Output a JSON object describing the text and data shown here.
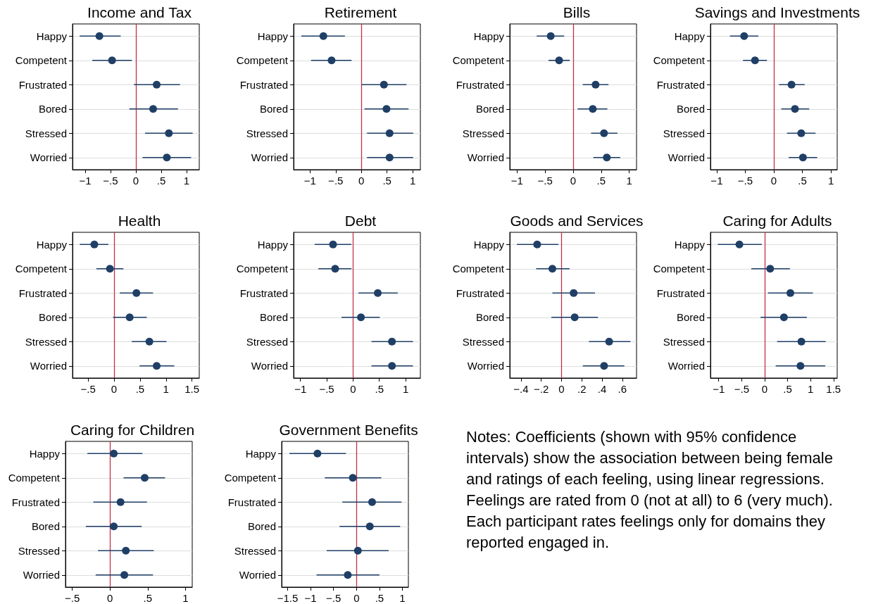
{
  "chart_data": [
    {
      "type": "scatter",
      "orientation": "horizontal",
      "title": "Income and Tax",
      "categories": [
        "Happy",
        "Competent",
        "Frustrated",
        "Bored",
        "Stressed",
        "Worried"
      ],
      "values": [
        -0.72,
        -0.47,
        0.41,
        0.34,
        0.65,
        0.61
      ],
      "errors": [
        [
          -1.11,
          -0.3
        ],
        [
          -0.86,
          -0.08
        ],
        [
          -0.04,
          0.87
        ],
        [
          -0.13,
          0.83
        ],
        [
          0.18,
          1.12
        ],
        [
          0.13,
          1.09
        ]
      ],
      "color": "#1f3f66",
      "marker": "circle",
      "xlim": [
        -1.25,
        1.25
      ],
      "xticks": [
        {
          "value": -1,
          "label": "−1"
        },
        {
          "value": -0.5,
          "label": "−.5"
        },
        0,
        {
          "value": 0.5,
          "label": ".5"
        },
        1
      ],
      "ref_lines": [
        {
          "axis": "x",
          "value": 0,
          "color": "#c0304a"
        }
      ],
      "grid": "y"
    },
    {
      "type": "scatter",
      "orientation": "horizontal",
      "title": "Retirement",
      "categories": [
        "Happy",
        "Competent",
        "Frustrated",
        "Bored",
        "Stressed",
        "Worried"
      ],
      "values": [
        -0.74,
        -0.58,
        0.44,
        0.49,
        0.55,
        0.55
      ],
      "errors": [
        [
          -1.17,
          -0.32
        ],
        [
          -0.98,
          -0.19
        ],
        [
          0.01,
          0.88
        ],
        [
          0.06,
          0.92
        ],
        [
          0.11,
          1.01
        ],
        [
          0.11,
          1.01
        ]
      ],
      "color": "#1f3f66",
      "marker": "circle",
      "xlim": [
        -1.32,
        1.15
      ],
      "xticks": [
        {
          "value": -1,
          "label": "−1"
        },
        {
          "value": -0.5,
          "label": "−.5"
        },
        0,
        {
          "value": 0.5,
          "label": ".5"
        },
        1
      ],
      "ref_lines": [
        {
          "axis": "x",
          "value": 0,
          "color": "#c0304a"
        }
      ],
      "grid": "y"
    },
    {
      "type": "scatter",
      "orientation": "horizontal",
      "title": "Bills",
      "categories": [
        "Happy",
        "Competent",
        "Frustrated",
        "Bored",
        "Stressed",
        "Worried"
      ],
      "values": [
        -0.4,
        -0.25,
        0.4,
        0.35,
        0.55,
        0.6
      ],
      "errors": [
        [
          -0.65,
          -0.16
        ],
        [
          -0.44,
          -0.06
        ],
        [
          0.17,
          0.63
        ],
        [
          0.08,
          0.61
        ],
        [
          0.32,
          0.79
        ],
        [
          0.36,
          0.84
        ]
      ],
      "color": "#1f3f66",
      "marker": "circle",
      "xlim": [
        -1.13,
        1.13
      ],
      "xticks": [
        {
          "value": -1,
          "label": "−1"
        },
        {
          "value": -0.5,
          "label": "−.5"
        },
        0,
        {
          "value": 0.5,
          "label": ".5"
        },
        1
      ],
      "ref_lines": [
        {
          "axis": "x",
          "value": 0,
          "color": "#c0304a"
        }
      ],
      "grid": "y"
    },
    {
      "type": "scatter",
      "orientation": "horizontal",
      "title": "Savings and Investments",
      "categories": [
        "Happy",
        "Competent",
        "Frustrated",
        "Bored",
        "Stressed",
        "Worried"
      ],
      "values": [
        -0.52,
        -0.33,
        0.31,
        0.37,
        0.48,
        0.51
      ],
      "errors": [
        [
          -0.77,
          -0.27
        ],
        [
          -0.54,
          -0.12
        ],
        [
          0.09,
          0.54
        ],
        [
          0.13,
          0.62
        ],
        [
          0.23,
          0.73
        ],
        [
          0.26,
          0.76
        ]
      ],
      "color": "#1f3f66",
      "marker": "circle",
      "xlim": [
        -1.11,
        1.11
      ],
      "xticks": [
        {
          "value": -1,
          "label": "−1"
        },
        {
          "value": -0.5,
          "label": "−.5"
        },
        0,
        {
          "value": 0.5,
          "label": ".5"
        },
        1
      ],
      "ref_lines": [
        {
          "axis": "x",
          "value": 0,
          "color": "#c0304a"
        }
      ],
      "grid": "y"
    },
    {
      "type": "scatter",
      "orientation": "horizontal",
      "title": "Health",
      "categories": [
        "Happy",
        "Competent",
        "Frustrated",
        "Bored",
        "Stressed",
        "Worried"
      ],
      "values": [
        -0.38,
        -0.08,
        0.43,
        0.3,
        0.68,
        0.82
      ],
      "errors": [
        [
          -0.66,
          -0.11
        ],
        [
          -0.34,
          0.18
        ],
        [
          0.11,
          0.75
        ],
        [
          -0.02,
          0.63
        ],
        [
          0.34,
          1.01
        ],
        [
          0.49,
          1.16
        ]
      ],
      "color": "#1f3f66",
      "marker": "circle",
      "xlim": [
        -0.8,
        1.64
      ],
      "xticks": [
        {
          "value": -0.5,
          "label": "−.5"
        },
        0,
        {
          "value": 0.5,
          "label": ".5"
        },
        1,
        1.5
      ],
      "ref_lines": [
        {
          "axis": "x",
          "value": 0,
          "color": "#c0304a"
        }
      ],
      "grid": "y"
    },
    {
      "type": "scatter",
      "orientation": "horizontal",
      "title": "Debt",
      "categories": [
        "Happy",
        "Competent",
        "Frustrated",
        "Bored",
        "Stressed",
        "Worried"
      ],
      "values": [
        -0.38,
        -0.34,
        0.47,
        0.15,
        0.74,
        0.74
      ],
      "errors": [
        [
          -0.73,
          -0.03
        ],
        [
          -0.66,
          -0.03
        ],
        [
          0.1,
          0.85
        ],
        [
          -0.22,
          0.51
        ],
        [
          0.35,
          1.14
        ],
        [
          0.35,
          1.14
        ]
      ],
      "color": "#1f3f66",
      "marker": "circle",
      "xlim": [
        -1.13,
        1.28
      ],
      "xticks": [
        {
          "value": -1,
          "label": "−1"
        },
        {
          "value": -0.5,
          "label": "−.5"
        },
        0,
        {
          "value": 0.5,
          "label": ".5"
        },
        1
      ],
      "ref_lines": [
        {
          "axis": "x",
          "value": 0,
          "color": "#c0304a"
        }
      ],
      "grid": "y"
    },
    {
      "type": "scatter",
      "orientation": "horizontal",
      "title": "Goods and Services",
      "categories": [
        "Happy",
        "Competent",
        "Frustrated",
        "Bored",
        "Stressed",
        "Worried"
      ],
      "values": [
        -0.24,
        -0.09,
        0.12,
        0.13,
        0.47,
        0.42
      ],
      "errors": [
        [
          -0.44,
          -0.03
        ],
        [
          -0.25,
          0.08
        ],
        [
          -0.09,
          0.33
        ],
        [
          -0.1,
          0.36
        ],
        [
          0.27,
          0.68
        ],
        [
          0.21,
          0.62
        ]
      ],
      "color": "#1f3f66",
      "marker": "circle",
      "xlim": [
        -0.51,
        0.74
      ],
      "xticks": [
        {
          "value": -0.4,
          "label": "−.4"
        },
        {
          "value": -0.2,
          "label": "−.2"
        },
        0,
        {
          "value": 0.2,
          "label": ".2"
        },
        {
          "value": 0.4,
          "label": ".4"
        },
        {
          "value": 0.6,
          "label": ".6"
        }
      ],
      "ref_lines": [
        {
          "axis": "x",
          "value": 0,
          "color": "#c0304a"
        }
      ],
      "grid": "y"
    },
    {
      "type": "scatter",
      "orientation": "horizontal",
      "title": "Caring for Adults",
      "categories": [
        "Happy",
        "Competent",
        "Frustrated",
        "Bored",
        "Stressed",
        "Worried"
      ],
      "values": [
        -0.55,
        0.12,
        0.56,
        0.42,
        0.8,
        0.78
      ],
      "errors": [
        [
          -1.02,
          -0.06
        ],
        [
          -0.29,
          0.55
        ],
        [
          0.07,
          1.05
        ],
        [
          -0.09,
          0.92
        ],
        [
          0.27,
          1.33
        ],
        [
          0.24,
          1.32
        ]
      ],
      "color": "#1f3f66",
      "marker": "circle",
      "xlim": [
        -1.18,
        1.58
      ],
      "xticks": [
        {
          "value": -1,
          "label": "−1"
        },
        {
          "value": -0.5,
          "label": "−.5"
        },
        0,
        {
          "value": 0.5,
          "label": ".5"
        },
        1,
        1.5
      ],
      "ref_lines": [
        {
          "axis": "x",
          "value": 0,
          "color": "#c0304a"
        }
      ],
      "grid": "y"
    },
    {
      "type": "scatter",
      "orientation": "horizontal",
      "title": "Caring for Children",
      "categories": [
        "Happy",
        "Competent",
        "Frustrated",
        "Bored",
        "Stressed",
        "Worried"
      ],
      "values": [
        0.05,
        0.46,
        0.14,
        0.05,
        0.21,
        0.19
      ],
      "errors": [
        [
          -0.3,
          0.43
        ],
        [
          0.18,
          0.73
        ],
        [
          -0.22,
          0.49
        ],
        [
          -0.32,
          0.42
        ],
        [
          -0.16,
          0.58
        ],
        [
          -0.19,
          0.57
        ]
      ],
      "color": "#1f3f66",
      "marker": "circle",
      "xlim": [
        -0.59,
        1.09
      ],
      "xticks": [
        {
          "value": -0.5,
          "label": "−.5"
        },
        0,
        {
          "value": 0.5,
          "label": ".5"
        },
        1
      ],
      "ref_lines": [
        {
          "axis": "x",
          "value": 0,
          "color": "#c0304a"
        }
      ],
      "grid": "y"
    },
    {
      "type": "scatter",
      "orientation": "horizontal",
      "title": "Government Benefits",
      "categories": [
        "Happy",
        "Competent",
        "Frustrated",
        "Bored",
        "Stressed",
        "Worried"
      ],
      "values": [
        -0.85,
        -0.08,
        0.34,
        0.29,
        0.03,
        -0.19
      ],
      "errors": [
        [
          -1.46,
          -0.23
        ],
        [
          -0.69,
          0.54
        ],
        [
          -0.31,
          0.98
        ],
        [
          -0.37,
          0.95
        ],
        [
          -0.65,
          0.7
        ],
        [
          -0.87,
          0.5
        ]
      ],
      "color": "#1f3f66",
      "marker": "circle",
      "xlim": [
        -1.63,
        1.13
      ],
      "xticks": [
        {
          "value": -1.5,
          "label": "−1.5"
        },
        {
          "value": -1,
          "label": "−1"
        },
        {
          "value": -0.5,
          "label": "−.5"
        },
        0,
        {
          "value": 0.5,
          "label": ".5"
        },
        1
      ],
      "ref_lines": [
        {
          "axis": "x",
          "value": 0,
          "color": "#c0304a"
        }
      ],
      "grid": "y"
    },
    {
      "type": "other",
      "annotations": [
        "Notes: Coefficients (shown with 95% confidence intervals) show the association between being female and ratings of each feeling, using linear regressions. Feelings are rated from 0 (not at all) to 6 (very much). Each participant rates feelings only for domains they reported engaged in."
      ]
    }
  ]
}
